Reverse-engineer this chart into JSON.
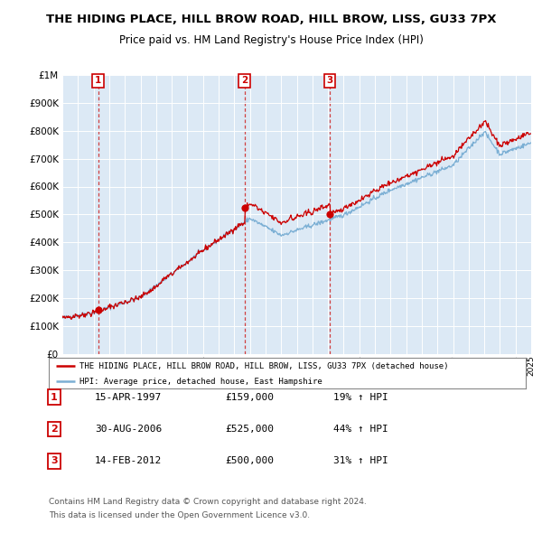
{
  "title": "THE HIDING PLACE, HILL BROW ROAD, HILL BROW, LISS, GU33 7PX",
  "subtitle": "Price paid vs. HM Land Registry's House Price Index (HPI)",
  "legend_line1": "THE HIDING PLACE, HILL BROW ROAD, HILL BROW, LISS, GU33 7PX (detached house)",
  "legend_line2": "HPI: Average price, detached house, East Hampshire",
  "transactions": [
    {
      "num": 1,
      "date": "15-APR-1997",
      "price": "£159,000",
      "hpi": "19% ↑ HPI",
      "year": 1997.29,
      "price_val": 159000
    },
    {
      "num": 2,
      "date": "30-AUG-2006",
      "price": "£525,000",
      "hpi": "44% ↑ HPI",
      "year": 2006.66,
      "price_val": 525000
    },
    {
      "num": 3,
      "date": "14-FEB-2012",
      "price": "£500,000",
      "hpi": "31% ↑ HPI",
      "year": 2012.12,
      "price_val": 500000
    }
  ],
  "footer1": "Contains HM Land Registry data © Crown copyright and database right 2024.",
  "footer2": "This data is licensed under the Open Government Licence v3.0.",
  "xlim": [
    1995,
    2025
  ],
  "ylim": [
    0,
    1000000
  ],
  "plot_bg": "#dce9f5",
  "red_line_color": "#cc0000",
  "blue_line_color": "#7bafd4",
  "dashed_line_color": "#d04040",
  "grid_color": "#ffffff",
  "title_fontsize": 9.5,
  "subtitle_fontsize": 8.5
}
